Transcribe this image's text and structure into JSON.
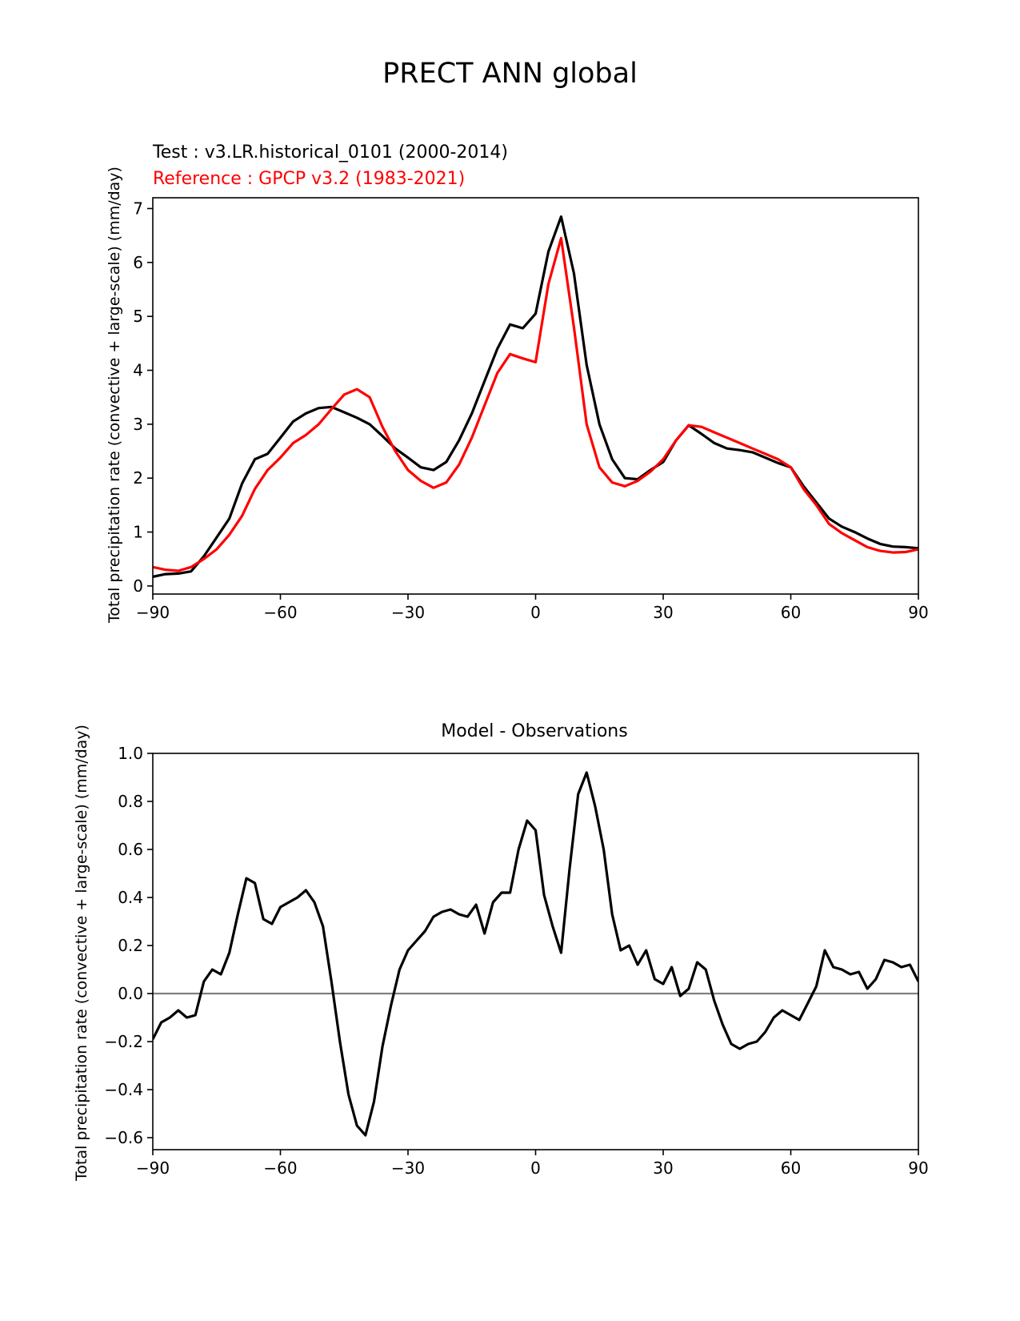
{
  "page_title": "PRECT ANN global",
  "chart_data": [
    {
      "type": "line",
      "test_label": "Test : v3.LR.historical_0101 (2000-2014)",
      "reference_label": "Reference : GPCP v3.2 (1983-2021)",
      "ylabel": "Total precipitation rate (convective + large-scale) (mm/day)",
      "xlim": [
        -90,
        90
      ],
      "ylim": [
        -0.15,
        7.2
      ],
      "x_ticks": [
        -90,
        -60,
        -30,
        0,
        30,
        60,
        90
      ],
      "x_tick_labels": [
        "−90",
        "−60",
        "−30",
        "0",
        "30",
        "60",
        "90"
      ],
      "y_ticks": [
        0,
        1,
        2,
        3,
        4,
        5,
        6,
        7
      ],
      "y_tick_labels": [
        "0",
        "1",
        "2",
        "3",
        "4",
        "5",
        "6",
        "7"
      ],
      "series": [
        {
          "name": "Test",
          "color": "#000000",
          "x": [
            -90,
            -87,
            -84,
            -81,
            -78,
            -75,
            -72,
            -69,
            -66,
            -63,
            -60,
            -57,
            -54,
            -51,
            -48,
            -45,
            -42,
            -39,
            -36,
            -33,
            -30,
            -27,
            -24,
            -21,
            -18,
            -15,
            -12,
            -9,
            -6,
            -3,
            0,
            3,
            6,
            9,
            12,
            15,
            18,
            21,
            24,
            27,
            30,
            33,
            36,
            39,
            42,
            45,
            48,
            51,
            54,
            57,
            60,
            63,
            66,
            69,
            72,
            75,
            78,
            81,
            84,
            87,
            90
          ],
          "values": [
            0.17,
            0.22,
            0.23,
            0.27,
            0.55,
            0.9,
            1.25,
            1.9,
            2.35,
            2.45,
            2.75,
            3.05,
            3.2,
            3.3,
            3.32,
            3.22,
            3.12,
            3.0,
            2.78,
            2.55,
            2.38,
            2.2,
            2.15,
            2.3,
            2.7,
            3.2,
            3.8,
            4.4,
            4.85,
            4.78,
            5.05,
            6.2,
            6.85,
            5.8,
            4.1,
            3.0,
            2.35,
            2.0,
            1.98,
            2.15,
            2.3,
            2.7,
            2.98,
            2.82,
            2.65,
            2.55,
            2.52,
            2.48,
            2.38,
            2.28,
            2.2,
            1.85,
            1.55,
            1.25,
            1.1,
            1.0,
            0.88,
            0.78,
            0.73,
            0.72,
            0.7
          ]
        },
        {
          "name": "Reference",
          "color": "#ff0000",
          "x": [
            -90,
            -87,
            -84,
            -81,
            -78,
            -75,
            -72,
            -69,
            -66,
            -63,
            -60,
            -57,
            -54,
            -51,
            -48,
            -45,
            -42,
            -39,
            -36,
            -33,
            -30,
            -27,
            -24,
            -21,
            -18,
            -15,
            -12,
            -9,
            -6,
            -3,
            0,
            3,
            6,
            9,
            12,
            15,
            18,
            21,
            24,
            27,
            30,
            33,
            36,
            39,
            42,
            45,
            48,
            51,
            54,
            57,
            60,
            63,
            66,
            69,
            72,
            75,
            78,
            81,
            84,
            87,
            90
          ],
          "values": [
            0.35,
            0.3,
            0.28,
            0.35,
            0.5,
            0.68,
            0.95,
            1.3,
            1.8,
            2.15,
            2.38,
            2.65,
            2.8,
            3.0,
            3.28,
            3.55,
            3.65,
            3.5,
            2.95,
            2.5,
            2.15,
            1.95,
            1.82,
            1.92,
            2.25,
            2.75,
            3.35,
            3.95,
            4.3,
            4.22,
            4.15,
            5.6,
            6.45,
            4.8,
            3.0,
            2.2,
            1.92,
            1.85,
            1.95,
            2.12,
            2.35,
            2.7,
            2.98,
            2.95,
            2.85,
            2.75,
            2.65,
            2.55,
            2.45,
            2.35,
            2.2,
            1.8,
            1.5,
            1.15,
            0.98,
            0.85,
            0.72,
            0.65,
            0.62,
            0.63,
            0.68
          ]
        }
      ]
    },
    {
      "type": "line",
      "title": "Model - Observations",
      "ylabel": "Total precipitation rate (convective + large-scale) (mm/day)",
      "xlim": [
        -90,
        90
      ],
      "ylim": [
        -0.65,
        1.0
      ],
      "x_ticks": [
        -90,
        -60,
        -30,
        0,
        30,
        60,
        90
      ],
      "x_tick_labels": [
        "−90",
        "−60",
        "−30",
        "0",
        "30",
        "60",
        "90"
      ],
      "y_ticks": [
        -0.6,
        -0.4,
        -0.2,
        0.0,
        0.2,
        0.4,
        0.6,
        0.8,
        1.0
      ],
      "y_tick_labels": [
        "−0.6",
        "−0.4",
        "−0.2",
        "0.0",
        "0.2",
        "0.4",
        "0.6",
        "0.8",
        "1.0"
      ],
      "zero_line_color": "#808080",
      "series": [
        {
          "name": "Model - Observations",
          "color": "#000000",
          "x": [
            -90,
            -88,
            -86,
            -84,
            -82,
            -80,
            -78,
            -76,
            -74,
            -72,
            -70,
            -68,
            -66,
            -64,
            -62,
            -60,
            -58,
            -56,
            -54,
            -52,
            -50,
            -48,
            -46,
            -44,
            -42,
            -40,
            -38,
            -36,
            -34,
            -32,
            -30,
            -28,
            -26,
            -24,
            -22,
            -20,
            -18,
            -16,
            -14,
            -12,
            -10,
            -8,
            -6,
            -4,
            -2,
            0,
            2,
            4,
            6,
            8,
            10,
            12,
            14,
            16,
            18,
            20,
            22,
            24,
            26,
            28,
            30,
            32,
            34,
            36,
            38,
            40,
            42,
            44,
            46,
            48,
            50,
            52,
            54,
            56,
            58,
            60,
            62,
            64,
            66,
            68,
            70,
            72,
            74,
            76,
            78,
            80,
            82,
            84,
            86,
            88,
            90
          ],
          "values": [
            -0.19,
            -0.12,
            -0.1,
            -0.07,
            -0.1,
            -0.09,
            0.05,
            0.1,
            0.08,
            0.17,
            0.33,
            0.48,
            0.46,
            0.31,
            0.29,
            0.36,
            0.38,
            0.4,
            0.43,
            0.38,
            0.28,
            0.05,
            -0.2,
            -0.42,
            -0.55,
            -0.59,
            -0.45,
            -0.22,
            -0.05,
            0.1,
            0.18,
            0.22,
            0.26,
            0.32,
            0.34,
            0.35,
            0.33,
            0.32,
            0.37,
            0.25,
            0.38,
            0.42,
            0.42,
            0.6,
            0.72,
            0.68,
            0.41,
            0.28,
            0.17,
            0.52,
            0.83,
            0.92,
            0.78,
            0.6,
            0.33,
            0.18,
            0.2,
            0.12,
            0.18,
            0.06,
            0.04,
            0.11,
            -0.01,
            0.02,
            0.13,
            0.1,
            -0.03,
            -0.13,
            -0.21,
            -0.23,
            -0.21,
            -0.2,
            -0.16,
            -0.1,
            -0.07,
            -0.09,
            -0.11,
            -0.04,
            0.03,
            0.18,
            0.11,
            0.1,
            0.08,
            0.09,
            0.02,
            0.06,
            0.14,
            0.13,
            0.11,
            0.12,
            0.05
          ]
        }
      ]
    }
  ]
}
